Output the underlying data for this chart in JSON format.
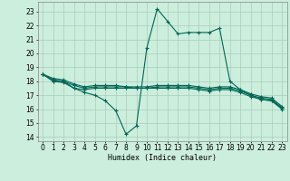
{
  "title": "",
  "xlabel": "Humidex (Indice chaleur)",
  "bg_color": "#cceedd",
  "grid_color": "#aaccbb",
  "line_color": "#006655",
  "xlim": [
    -0.5,
    23.5
  ],
  "ylim": [
    13.7,
    23.7
  ],
  "yticks": [
    14,
    15,
    16,
    17,
    18,
    19,
    20,
    21,
    22,
    23
  ],
  "xticks": [
    0,
    1,
    2,
    3,
    4,
    5,
    6,
    7,
    8,
    9,
    10,
    11,
    12,
    13,
    14,
    15,
    16,
    17,
    18,
    19,
    20,
    21,
    22,
    23
  ],
  "series": [
    {
      "x": [
        0,
        1,
        2,
        3,
        4,
        5,
        6,
        7,
        8,
        9,
        10,
        11,
        12,
        13,
        14,
        15,
        16,
        17,
        18,
        19,
        20,
        21,
        22,
        23
      ],
      "y": [
        18.5,
        18.0,
        18.0,
        17.5,
        17.2,
        17.0,
        16.6,
        15.9,
        14.2,
        14.8,
        20.4,
        23.2,
        22.3,
        21.4,
        21.5,
        21.5,
        21.5,
        21.8,
        18.0,
        17.4,
        17.0,
        16.7,
        16.6,
        16.0
      ]
    },
    {
      "x": [
        0,
        1,
        2,
        3,
        4,
        5,
        6,
        7,
        8,
        9,
        10,
        11,
        12,
        13,
        14,
        15,
        16,
        17,
        18,
        19,
        20,
        21,
        22,
        23
      ],
      "y": [
        18.5,
        18.0,
        17.9,
        17.5,
        17.4,
        17.5,
        17.5,
        17.5,
        17.5,
        17.5,
        17.5,
        17.5,
        17.5,
        17.5,
        17.5,
        17.4,
        17.3,
        17.4,
        17.4,
        17.2,
        16.9,
        16.7,
        16.6,
        16.1
      ]
    },
    {
      "x": [
        0,
        1,
        2,
        3,
        4,
        5,
        6,
        7,
        8,
        9,
        10,
        11,
        12,
        13,
        14,
        15,
        16,
        17,
        18,
        19,
        20,
        21,
        22,
        23
      ],
      "y": [
        18.5,
        18.1,
        18.0,
        17.7,
        17.5,
        17.6,
        17.6,
        17.6,
        17.6,
        17.5,
        17.5,
        17.6,
        17.6,
        17.6,
        17.6,
        17.5,
        17.4,
        17.5,
        17.5,
        17.3,
        17.0,
        16.8,
        16.7,
        16.1
      ]
    },
    {
      "x": [
        0,
        1,
        2,
        3,
        4,
        5,
        6,
        7,
        8,
        9,
        10,
        11,
        12,
        13,
        14,
        15,
        16,
        17,
        18,
        19,
        20,
        21,
        22,
        23
      ],
      "y": [
        18.5,
        18.2,
        18.1,
        17.8,
        17.6,
        17.7,
        17.7,
        17.7,
        17.6,
        17.6,
        17.6,
        17.7,
        17.7,
        17.7,
        17.7,
        17.6,
        17.5,
        17.6,
        17.6,
        17.4,
        17.1,
        16.9,
        16.8,
        16.2
      ]
    }
  ]
}
